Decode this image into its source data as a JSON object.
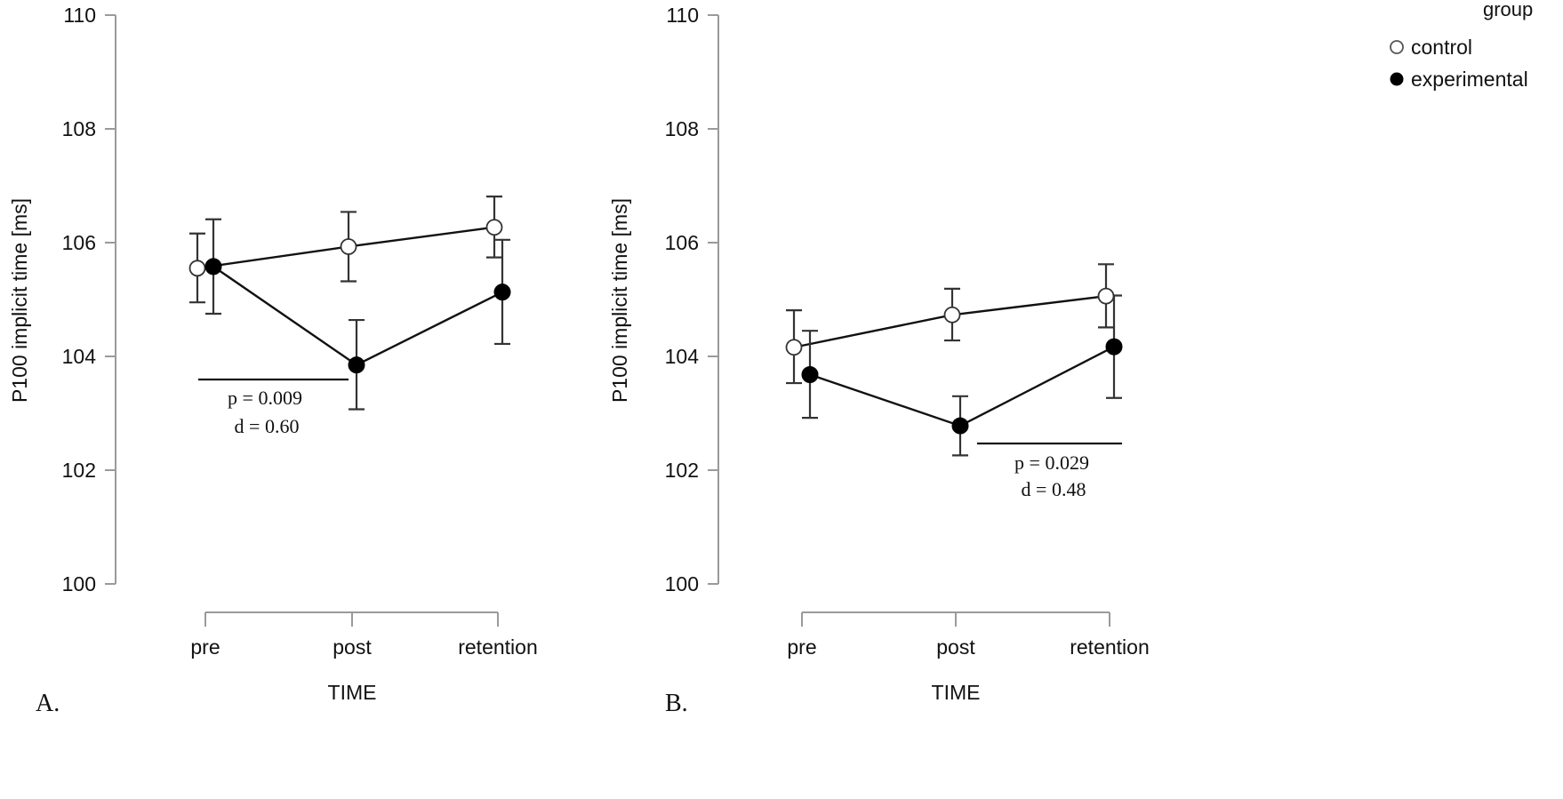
{
  "legend": {
    "title": "group",
    "entries": [
      {
        "label": "control",
        "marker": "open-circle"
      },
      {
        "label": "experimental",
        "marker": "filled-circle"
      }
    ]
  },
  "chart_data": [
    {
      "type": "line",
      "panel_label": "A.",
      "title": "",
      "xlabel": "TIME",
      "ylabel": "P100 implicit time [ms]",
      "categories": [
        "pre",
        "post",
        "retention"
      ],
      "ylim": [
        100,
        110
      ],
      "yticks": [
        100,
        102,
        104,
        106,
        108,
        110
      ],
      "ytick_labels": [
        "100",
        "102",
        "104",
        "106",
        "108",
        "110"
      ],
      "grid": false,
      "series": [
        {
          "name": "control",
          "values": [
            105.55,
            105.93,
            106.27
          ],
          "err_low": [
            104.95,
            105.32,
            105.74
          ],
          "err_high": [
            106.16,
            106.54,
            106.81
          ]
        },
        {
          "name": "experimental",
          "values": [
            105.58,
            103.85,
            105.13
          ],
          "err_low": [
            104.75,
            103.07,
            104.22
          ],
          "err_high": [
            106.41,
            104.64,
            106.05
          ]
        }
      ],
      "annotation": {
        "line1": "p = 0.009",
        "line2": "d = 0.60",
        "span": [
          "pre",
          "post"
        ]
      }
    },
    {
      "type": "line",
      "panel_label": "B.",
      "title": "",
      "xlabel": "TIME",
      "ylabel": "P100 implicit time [ms]",
      "categories": [
        "pre",
        "post",
        "retention"
      ],
      "ylim": [
        100,
        110
      ],
      "yticks": [
        100,
        102,
        104,
        106,
        108,
        110
      ],
      "ytick_labels": [
        "100",
        "102",
        "104",
        "106",
        "108",
        "110"
      ],
      "grid": false,
      "series": [
        {
          "name": "control",
          "values": [
            104.16,
            104.73,
            105.06
          ],
          "err_low": [
            103.53,
            104.28,
            104.51
          ],
          "err_high": [
            104.81,
            105.19,
            105.62
          ]
        },
        {
          "name": "experimental",
          "values": [
            103.68,
            102.78,
            104.17
          ],
          "err_low": [
            102.92,
            102.26,
            103.27
          ],
          "err_high": [
            104.45,
            103.3,
            105.07
          ]
        }
      ],
      "annotation": {
        "line1": "p = 0.029",
        "line2": "d = 0.48",
        "span": [
          "post",
          "retention"
        ]
      }
    }
  ]
}
